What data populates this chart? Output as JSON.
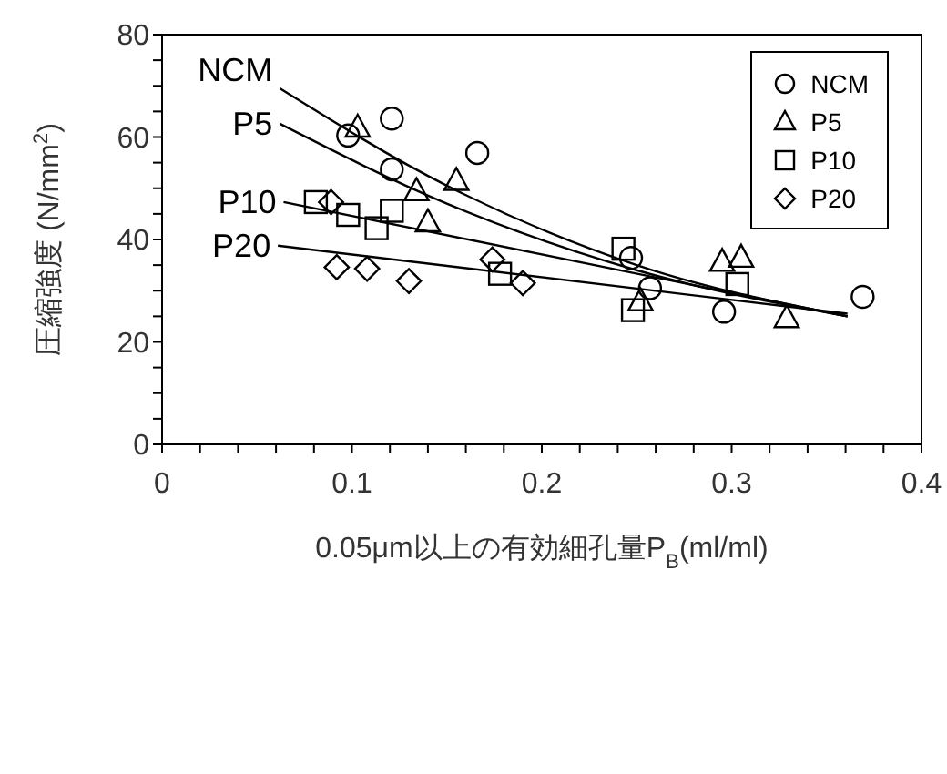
{
  "chart_data": {
    "type": "scatter",
    "xlabel": "0.05μm以上の有効細孔量P$_{B}$(ml/ml)",
    "ylabel": "圧縮強度 (N/mm$^{2}$)",
    "xlim": [
      0,
      0.4
    ],
    "ylim": [
      0,
      80
    ],
    "xticks": [
      0,
      {
        "value": 0.02,
        "label": null
      },
      {
        "value": 0.04,
        "label": null
      },
      {
        "value": 0.06,
        "label": null
      },
      {
        "value": 0.08,
        "label": null
      },
      0.1,
      {
        "value": 0.12,
        "label": null
      },
      {
        "value": 0.14,
        "label": null
      },
      {
        "value": 0.16,
        "label": null
      },
      {
        "value": 0.18,
        "label": null
      },
      0.2,
      {
        "value": 0.22,
        "label": null
      },
      {
        "value": 0.24,
        "label": null
      },
      {
        "value": 0.26,
        "label": null
      },
      {
        "value": 0.28,
        "label": null
      },
      0.3,
      {
        "value": 0.32,
        "label": null
      },
      {
        "value": 0.34,
        "label": null
      },
      {
        "value": 0.36,
        "label": null
      },
      {
        "value": 0.38,
        "label": null
      },
      0.4
    ],
    "yticks": [
      0,
      {
        "value": 5,
        "label": null
      },
      {
        "value": 10,
        "label": null
      },
      {
        "value": 15,
        "label": null
      },
      20,
      {
        "value": 25,
        "label": null
      },
      {
        "value": 30,
        "label": null
      },
      {
        "value": 35,
        "label": null
      },
      40,
      {
        "value": 45,
        "label": null
      },
      {
        "value": 50,
        "label": null
      },
      {
        "value": 55,
        "label": null
      },
      60,
      {
        "value": 65,
        "label": null
      },
      {
        "value": 70,
        "label": null
      },
      {
        "value": 75,
        "label": null
      },
      80
    ],
    "grid": false,
    "legend": "top right",
    "series": [
      {
        "name": "NCM",
        "marker": "circle",
        "color": "#000000",
        "x": [
          0.098,
          0.121,
          0.121,
          0.166,
          0.247,
          0.257,
          0.296,
          0.369
        ],
        "values": [
          60.3,
          63.6,
          53.7,
          56.9,
          36.4,
          30.5,
          25.9,
          28.8
        ]
      },
      {
        "name": "P5",
        "marker": "triangle",
        "color": "#000000",
        "x": [
          0.103,
          0.134,
          0.14,
          0.155,
          0.252,
          0.295,
          0.305,
          0.329
        ],
        "values": [
          61.8,
          49.4,
          43.3,
          51.4,
          27.9,
          35.6,
          36.4,
          24.6
        ]
      },
      {
        "name": "P10",
        "marker": "square",
        "color": "#000000",
        "x": [
          0.081,
          0.098,
          0.113,
          0.121,
          0.178,
          0.243,
          0.248,
          0.303
        ],
        "values": [
          47.3,
          44.8,
          42.2,
          45.6,
          33.3,
          38.2,
          26.2,
          31.3
        ]
      },
      {
        "name": "P20",
        "marker": "diamond",
        "color": "#000000",
        "x": [
          0.089,
          0.092,
          0.108,
          0.13,
          0.174,
          0.19
        ],
        "values": [
          47.3,
          34.6,
          34.3,
          31.9,
          36.1,
          31.5
        ]
      },
      {
        "type": "line",
        "color": "#000000",
        "line_style": "solid",
        "marker": "none",
        "x": [
          0.062,
          0.15,
          0.25,
          0.361
        ],
        "values": [
          69.5,
          50.5,
          35,
          25
        ]
      },
      {
        "type": "line",
        "color": "#000000",
        "line_style": "solid",
        "marker": "none",
        "x": [
          0.062,
          0.15,
          0.25,
          0.361
        ],
        "values": [
          62.6,
          47,
          34,
          25
        ]
      },
      {
        "type": "line",
        "color": "#000000",
        "line_style": "solid",
        "marker": "none",
        "x": [
          0.064,
          0.361
        ],
        "values": [
          47.3,
          25
        ]
      },
      {
        "type": "line",
        "color": "#000000",
        "line_style": "solid",
        "marker": "none",
        "x": [
          0.061,
          0.361
        ],
        "values": [
          38.8,
          25.5
        ]
      }
    ],
    "annotations": [
      {
        "text": "NCM",
        "x": 0.062,
        "y": 69.5
      },
      {
        "text": "P5",
        "x": 0.062,
        "y": 62.6
      },
      {
        "text": "P10",
        "x": 0.064,
        "y": 47.3
      },
      {
        "text": "P20",
        "x": 0.061,
        "y": 38.8
      }
    ]
  }
}
